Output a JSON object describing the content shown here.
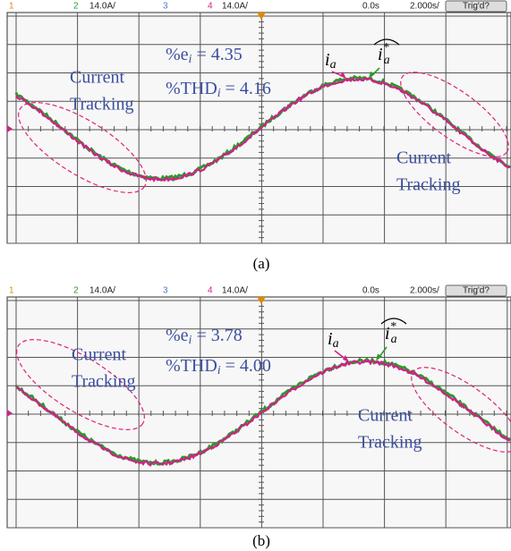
{
  "panels": [
    {
      "header": {
        "ch1": "1",
        "ch2": "2",
        "ch2_scale": "14.0A/",
        "ch3": "3",
        "ch4": "4",
        "ch4_scale": "14.0A/",
        "delay": "0.0s",
        "timebase": "2.000s/",
        "trigger": "Trig'd?"
      },
      "annotations": {
        "ei_label": "%e",
        "ei_sub": "i",
        "ei_value": " = 4.35",
        "thd_label": "%THD",
        "thd_sub": "i",
        "thd_value": " = 4.16",
        "ia": "i",
        "ia_sub": "a",
        "ia_hat": "i",
        "ia_hat_sub": "a",
        "ia_hat_sup": "*",
        "tracking_left": [
          "Current",
          "Tracking"
        ],
        "tracking_right": [
          "Current",
          "Tracking"
        ]
      },
      "caption": "(a)"
    },
    {
      "header": {
        "ch1": "1",
        "ch2": "2",
        "ch2_scale": "14.0A/",
        "ch3": "3",
        "ch4": "4",
        "ch4_scale": "14.0A/",
        "delay": "0.0s",
        "timebase": "2.000s/",
        "trigger": "Trig'd?"
      },
      "annotations": {
        "ei_label": "%e",
        "ei_sub": "i",
        "ei_value": " = 3.78",
        "thd_label": "%THD",
        "thd_sub": "i",
        "thd_value": " = 4.00",
        "ia": "i",
        "ia_sub": "a",
        "ia_hat": "i",
        "ia_hat_sub": "a",
        "ia_hat_sup": "*",
        "tracking_left": [
          "Current",
          "Tracking"
        ],
        "tracking_right": [
          "Current",
          "Tracking"
        ]
      },
      "caption": "(b)"
    }
  ]
}
